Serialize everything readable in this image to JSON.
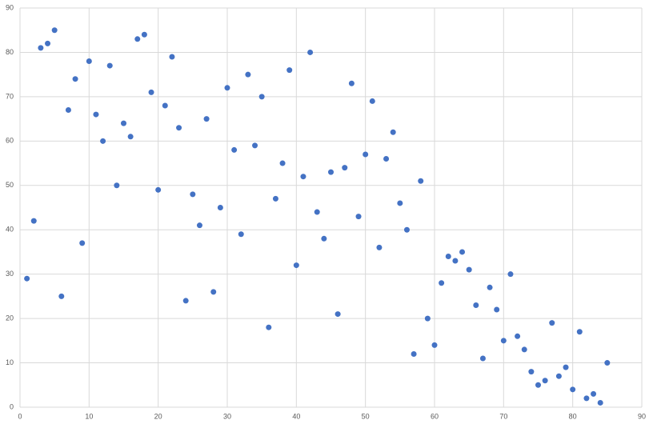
{
  "chart_data": {
    "type": "scatter",
    "x": [
      1,
      2,
      3,
      4,
      5,
      6,
      7,
      8,
      9,
      10,
      11,
      12,
      13,
      14,
      15,
      16,
      17,
      18,
      19,
      20,
      21,
      22,
      23,
      24,
      25,
      26,
      27,
      28,
      29,
      30,
      31,
      32,
      33,
      34,
      35,
      36,
      37,
      38,
      39,
      40,
      41,
      42,
      43,
      44,
      45,
      46,
      47,
      48,
      49,
      50,
      51,
      52,
      53,
      54,
      55,
      56,
      57,
      58,
      59,
      60,
      61,
      62,
      63,
      64,
      65,
      66,
      67,
      68,
      69,
      70,
      71,
      72,
      73,
      74,
      75,
      76,
      77,
      78,
      79,
      80,
      81,
      82,
      83,
      84,
      85
    ],
    "values": [
      29,
      42,
      81,
      82,
      85,
      25,
      67,
      74,
      37,
      78,
      66,
      60,
      77,
      50,
      64,
      61,
      83,
      84,
      71,
      49,
      68,
      79,
      63,
      24,
      48,
      41,
      65,
      26,
      45,
      72,
      58,
      39,
      75,
      59,
      70,
      18,
      47,
      55,
      76,
      32,
      52,
      80,
      44,
      38,
      53,
      21,
      54,
      73,
      43,
      57,
      69,
      36,
      56,
      62,
      46,
      40,
      12,
      51,
      20,
      14,
      28,
      34,
      33,
      35,
      31,
      23,
      11,
      27,
      22,
      15,
      30,
      16,
      13,
      8,
      5,
      6,
      19,
      7,
      9,
      4,
      17,
      2,
      3,
      1,
      10
    ],
    "color": "#4472c4",
    "xlim": [
      0,
      90
    ],
    "xticks": [
      0,
      10,
      20,
      30,
      40,
      50,
      60,
      70,
      80,
      90
    ],
    "ylim": [
      0,
      90
    ],
    "yticks": [
      0,
      10,
      20,
      30,
      40,
      50,
      60,
      70,
      80,
      90
    ],
    "grid": true
  }
}
